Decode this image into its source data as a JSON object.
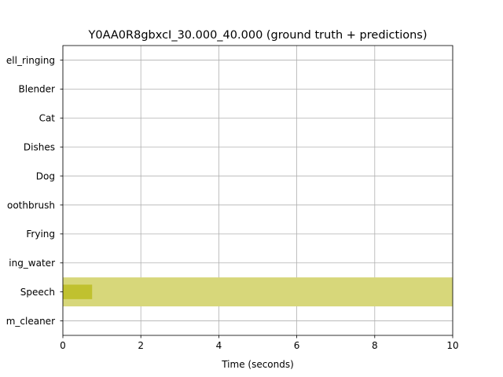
{
  "chart_data": {
    "type": "timeline",
    "title": "Y0AA0R8gbxcI_30.000_40.000 (ground truth + predictions)",
    "xlabel": "Time (seconds)",
    "ylabel": "",
    "xlim": [
      0,
      10
    ],
    "xticks": [
      0,
      2,
      4,
      6,
      8,
      10
    ],
    "xtick_labels": [
      "0",
      "2",
      "4",
      "6",
      "8",
      "10"
    ],
    "categories": [
      "Alarm_bell_ringing",
      "Blender",
      "Cat",
      "Dishes",
      "Dog",
      "Electric_shaver_toothbrush",
      "Frying",
      "Running_water",
      "Speech",
      "Vacuum_cleaner"
    ],
    "category_labels": [
      "ell_ringing",
      "Blender",
      "Cat",
      "Dishes",
      "Dog",
      "oothbrush",
      "Frying",
      "ing_water",
      "Speech",
      "m_cleaner"
    ],
    "grid": true,
    "series": [
      {
        "kind": "ground_truth",
        "color": "#d7d77a",
        "segments": [
          {
            "category": "Speech",
            "start": 0.0,
            "end": 10.0
          }
        ]
      },
      {
        "kind": "prediction",
        "color": "#bcbd22",
        "segments": [
          {
            "category": "Speech",
            "start": 0.0,
            "end": 0.75
          }
        ]
      }
    ]
  }
}
